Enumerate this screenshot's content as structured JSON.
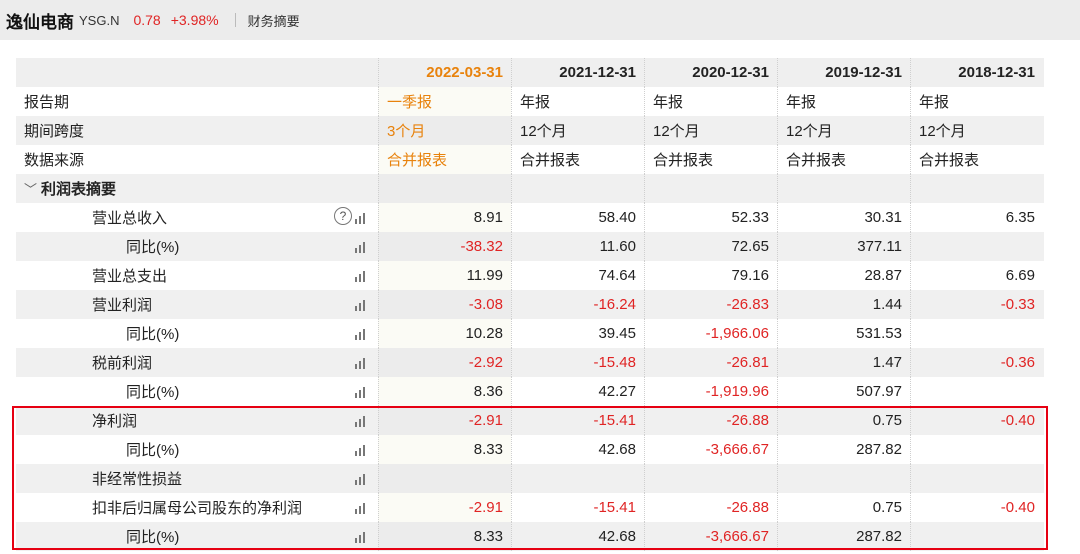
{
  "header": {
    "company_name": "逸仙电商",
    "ticker": "YSG.N",
    "price": "0.78",
    "change": "+3.98%",
    "tab_label": "财务摘要"
  },
  "chart_data": {
    "type": "table",
    "columns": [
      "2022-03-31",
      "2021-12-31",
      "2020-12-31",
      "2019-12-31",
      "2018-12-31"
    ],
    "meta_rows": [
      {
        "label": "报告期",
        "values": [
          "一季报",
          "年报",
          "年报",
          "年报",
          "年报"
        ]
      },
      {
        "label": "期间跨度",
        "values": [
          "3个月",
          "12个月",
          "12个月",
          "12个月",
          "12个月"
        ]
      },
      {
        "label": "数据来源",
        "values": [
          "合并报表",
          "合并报表",
          "合并报表",
          "合并报表",
          "合并报表"
        ]
      }
    ],
    "section_title": "利润表摘要",
    "rows": [
      {
        "label": "营业总收入",
        "level": 1,
        "help": "?",
        "values": [
          "8.91",
          "58.40",
          "52.33",
          "30.31",
          "6.35"
        ]
      },
      {
        "label": "同比(%)",
        "level": 2,
        "values": [
          "-38.32",
          "11.60",
          "72.65",
          "377.11",
          ""
        ]
      },
      {
        "label": "营业总支出",
        "level": 1,
        "values": [
          "11.99",
          "74.64",
          "79.16",
          "28.87",
          "6.69"
        ]
      },
      {
        "label": "营业利润",
        "level": 1,
        "values": [
          "-3.08",
          "-16.24",
          "-26.83",
          "1.44",
          "-0.33"
        ]
      },
      {
        "label": "同比(%)",
        "level": 2,
        "values": [
          "10.28",
          "39.45",
          "-1,966.06",
          "531.53",
          ""
        ]
      },
      {
        "label": "税前利润",
        "level": 1,
        "values": [
          "-2.92",
          "-15.48",
          "-26.81",
          "1.47",
          "-0.36"
        ]
      },
      {
        "label": "同比(%)",
        "level": 2,
        "values": [
          "8.36",
          "42.27",
          "-1,919.96",
          "507.97",
          ""
        ]
      },
      {
        "label": "净利润",
        "level": 1,
        "values": [
          "-2.91",
          "-15.41",
          "-26.88",
          "0.75",
          "-0.40"
        ]
      },
      {
        "label": "同比(%)",
        "level": 2,
        "values": [
          "8.33",
          "42.68",
          "-3,666.67",
          "287.82",
          ""
        ]
      },
      {
        "label": "非经常性损益",
        "level": 1,
        "values": [
          "",
          "",
          "",
          "",
          ""
        ]
      },
      {
        "label": "扣非后归属母公司股东的净利润",
        "level": 1,
        "values": [
          "-2.91",
          "-15.41",
          "-26.88",
          "0.75",
          "-0.40"
        ]
      },
      {
        "label": "同比(%)",
        "level": 2,
        "values": [
          "8.33",
          "42.68",
          "-3,666.67",
          "287.82",
          ""
        ]
      }
    ]
  },
  "colors": {
    "negative": "#e02424",
    "current_period": "#e8820c",
    "highlight_box": "#e60012"
  },
  "icons": {
    "section_toggle": "chevron-down-icon",
    "row_chart": "bar-chart-icon",
    "help": "help-icon"
  },
  "section_toggle_glyph": "﹀"
}
